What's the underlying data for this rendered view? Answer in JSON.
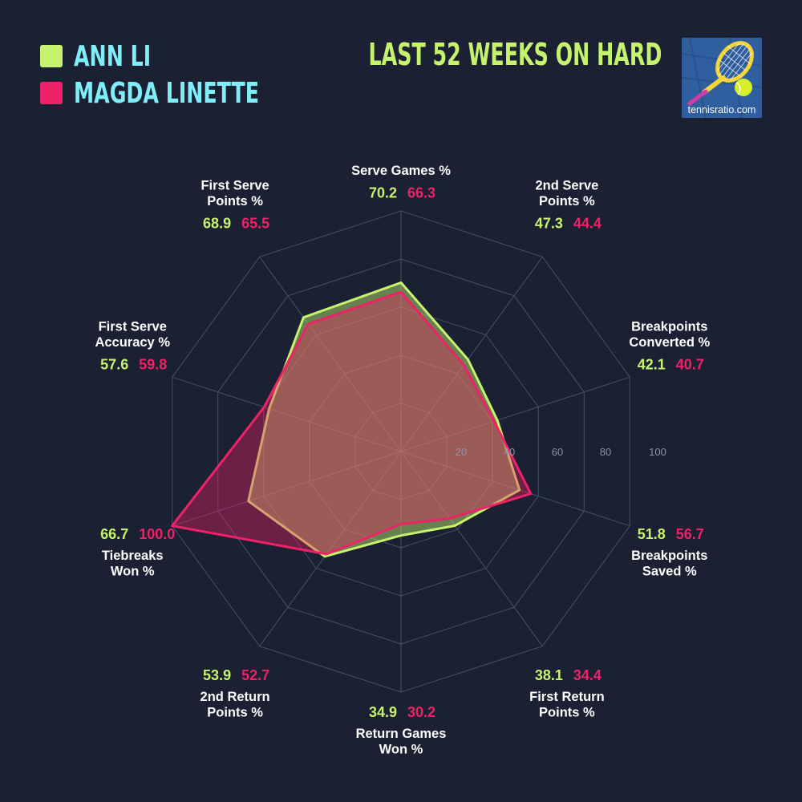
{
  "legend": {
    "player_a": "ANN LI",
    "player_b": "MAGDA LINETTE"
  },
  "header": {
    "title": "LAST 52 WEEKS ON HARD"
  },
  "logo": {
    "caption": "tennisratio.com"
  },
  "colors": {
    "player_a": "#c6f36e",
    "player_b": "#ee2266",
    "background": "#1c2033",
    "grid": "#4a4f66"
  },
  "chart_data": {
    "type": "radar",
    "title": "LAST 52 WEEKS ON HARD",
    "range": [
      0,
      100
    ],
    "ticks": [
      20,
      40,
      60,
      80,
      100
    ],
    "axes": [
      [
        "Serve Games %"
      ],
      [
        "2nd Serve",
        "Points %"
      ],
      [
        "Breakpoints",
        "Converted %"
      ],
      [
        "Breakpoints",
        "Saved %"
      ],
      [
        "First Return",
        "Points %"
      ],
      [
        "Return Games",
        "Won %"
      ],
      [
        "2nd Return",
        "Points %"
      ],
      [
        "Tiebreaks",
        "Won %"
      ],
      [
        "First Serve",
        "Accuracy %"
      ],
      [
        "First Serve",
        "Points %"
      ]
    ],
    "series": [
      {
        "name": "ANN LI",
        "values": [
          70.2,
          47.3,
          42.1,
          51.8,
          38.1,
          34.9,
          53.9,
          66.7,
          57.6,
          68.9
        ]
      },
      {
        "name": "MAGDA LINETTE",
        "values": [
          66.3,
          44.4,
          40.7,
          56.7,
          34.4,
          30.2,
          52.7,
          100.0,
          59.8,
          65.5
        ]
      }
    ],
    "value_labels_a": [
      "70.2",
      "47.3",
      "42.1",
      "51.8",
      "38.1",
      "34.9",
      "53.9",
      "66.7",
      "57.6",
      "68.9"
    ],
    "value_labels_b": [
      "66.3",
      "44.4",
      "40.7",
      "56.7",
      "34.4",
      "30.2",
      "52.7",
      "100.0",
      "59.8",
      "65.5"
    ]
  }
}
